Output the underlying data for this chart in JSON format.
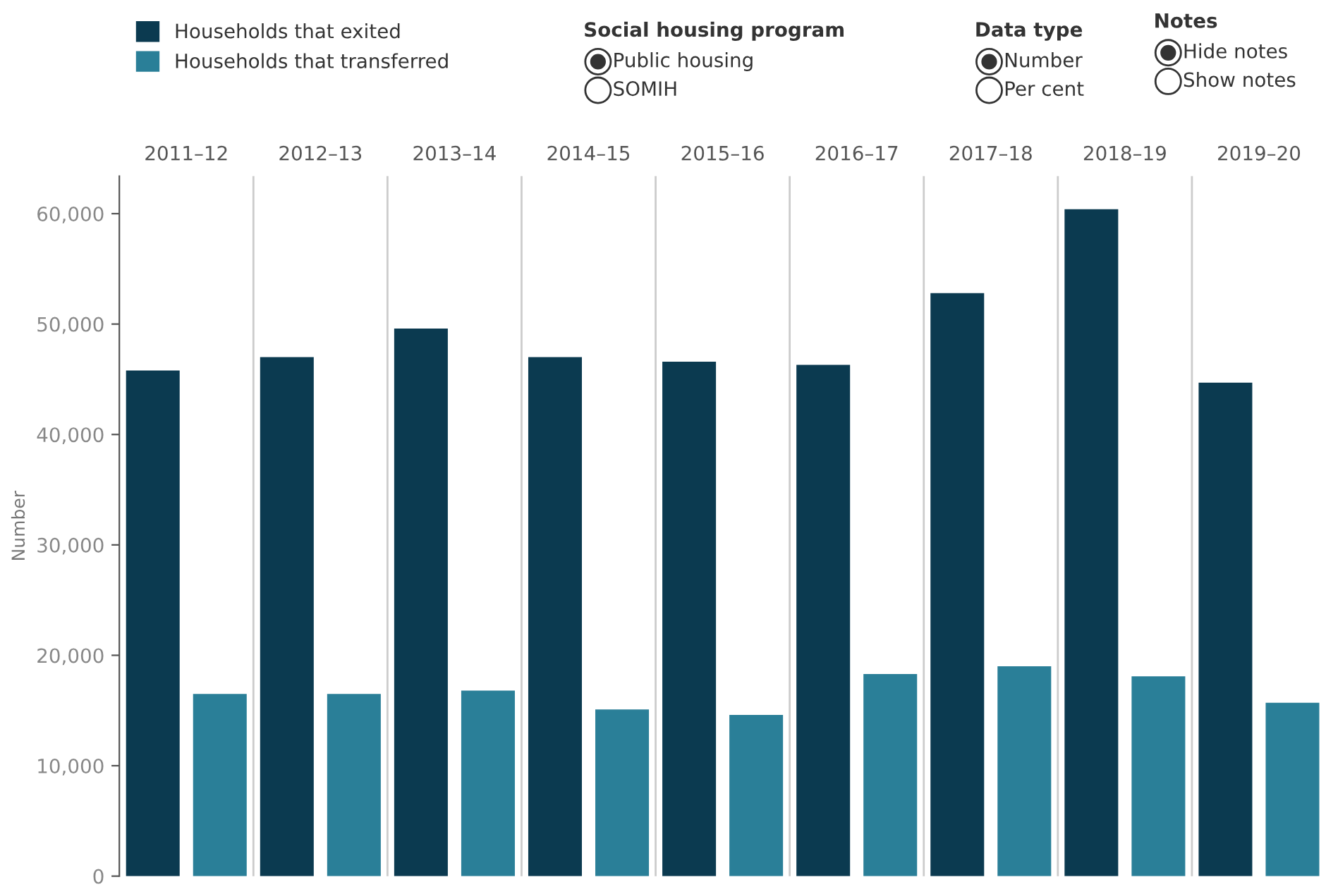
{
  "chart_data": {
    "type": "bar",
    "categories": [
      "2011–12",
      "2012–13",
      "2013–14",
      "2014–15",
      "2015–16",
      "2016–17",
      "2017–18",
      "2018–19",
      "2019–20"
    ],
    "series": [
      {
        "name": "Households that exited",
        "color": "#0b3a50",
        "values": [
          45800,
          47000,
          49600,
          47000,
          46600,
          46300,
          52800,
          60400,
          44700
        ]
      },
      {
        "name": "Households that transferred",
        "color": "#2a7f98",
        "values": [
          16500,
          16500,
          16800,
          15100,
          14600,
          18300,
          19000,
          18100,
          15700
        ]
      }
    ],
    "ylabel": "Number",
    "ylim": [
      0,
      63400
    ],
    "yticks": [
      {
        "value": 0,
        "label": "0"
      },
      {
        "value": 10000,
        "label": "10,000"
      },
      {
        "value": 20000,
        "label": "20,000"
      },
      {
        "value": 30000,
        "label": "30,000"
      },
      {
        "value": 40000,
        "label": "40,000"
      },
      {
        "value": 50000,
        "label": "50,000"
      },
      {
        "value": 60000,
        "label": "60,000"
      }
    ],
    "grid": "x",
    "legend": "top left",
    "annotations": [
      "Social housing program",
      "Public housing",
      "SOMIH",
      "Data type",
      "Number",
      "Per cent",
      "Notes",
      "Hide notes",
      "Show notes"
    ]
  }
}
